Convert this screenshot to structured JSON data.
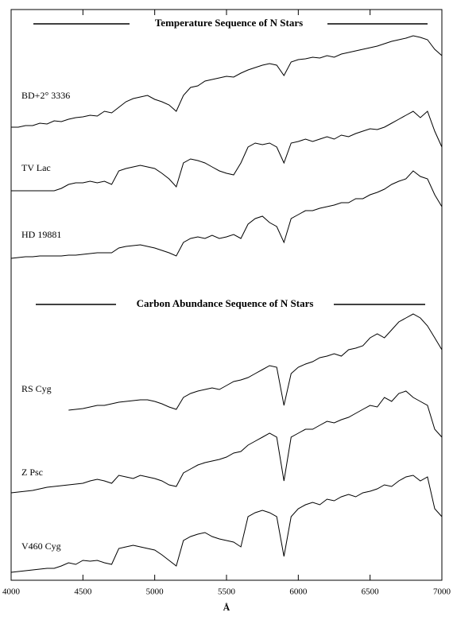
{
  "chart_data": {
    "type": "line",
    "annotations": [
      "Temperature Sequence of N Stars",
      "Carbon Abundance Sequence of N Stars"
    ],
    "xlabel": "Å",
    "xlim": [
      4000,
      7000
    ],
    "xticks": [
      4000,
      4500,
      5000,
      5500,
      6000,
      6500,
      7000
    ],
    "ylim": [
      0,
      720
    ],
    "x": [
      4000,
      4050,
      4100,
      4150,
      4200,
      4250,
      4300,
      4350,
      4400,
      4450,
      4500,
      4550,
      4600,
      4650,
      4700,
      4750,
      4800,
      4850,
      4900,
      4950,
      5000,
      5050,
      5100,
      5150,
      5200,
      5250,
      5300,
      5350,
      5400,
      5450,
      5500,
      5550,
      5600,
      5650,
      5700,
      5750,
      5800,
      5850,
      5900,
      5950,
      6000,
      6050,
      6100,
      6150,
      6200,
      6250,
      6300,
      6350,
      6400,
      6450,
      6500,
      6550,
      6600,
      6650,
      6700,
      6750,
      6800,
      6850,
      6900,
      6950,
      7000
    ],
    "series": [
      {
        "name": "BD+2° 3336",
        "color": "#000000",
        "values": [
          570,
          570,
          572,
          572,
          575,
          574,
          578,
          577,
          580,
          582,
          583,
          585,
          584,
          590,
          588,
          595,
          602,
          606,
          608,
          610,
          605,
          602,
          598,
          590,
          610,
          620,
          622,
          628,
          630,
          632,
          634,
          633,
          638,
          642,
          645,
          648,
          650,
          648,
          635,
          652,
          655,
          656,
          658,
          657,
          660,
          658,
          662,
          664,
          666,
          668,
          670,
          672,
          675,
          678,
          680,
          682,
          685,
          683,
          680,
          668,
          660
        ]
      },
      {
        "name": "TV Lac",
        "color": "#000000",
        "values": [
          490,
          490,
          490,
          490,
          490,
          490,
          490,
          493,
          498,
          500,
          500,
          502,
          500,
          502,
          498,
          515,
          518,
          520,
          522,
          520,
          518,
          512,
          505,
          495,
          525,
          530,
          528,
          525,
          520,
          515,
          512,
          510,
          525,
          545,
          550,
          548,
          550,
          545,
          525,
          550,
          552,
          555,
          552,
          555,
          558,
          555,
          560,
          558,
          562,
          565,
          568,
          567,
          570,
          575,
          580,
          585,
          590,
          582,
          590,
          565,
          545
        ]
      },
      {
        "name": "HD 19881",
        "color": "#000000",
        "values": [
          405,
          406,
          407,
          407,
          408,
          408,
          408,
          408,
          409,
          409,
          410,
          411,
          412,
          412,
          412,
          418,
          420,
          421,
          422,
          420,
          418,
          415,
          412,
          408,
          425,
          430,
          432,
          430,
          434,
          430,
          432,
          435,
          430,
          448,
          455,
          458,
          450,
          445,
          425,
          455,
          460,
          465,
          465,
          468,
          470,
          472,
          475,
          475,
          480,
          480,
          485,
          488,
          492,
          498,
          502,
          505,
          515,
          508,
          505,
          485,
          470
        ]
      },
      {
        "name": "RS Cyg",
        "color": "#000000",
        "values": [
          null,
          null,
          null,
          null,
          null,
          null,
          null,
          null,
          214,
          215,
          216,
          218,
          220,
          220,
          222,
          224,
          225,
          226,
          227,
          227,
          225,
          222,
          218,
          215,
          230,
          235,
          238,
          240,
          242,
          240,
          245,
          250,
          252,
          255,
          260,
          265,
          270,
          268,
          220,
          260,
          268,
          272,
          275,
          280,
          282,
          285,
          282,
          290,
          292,
          295,
          305,
          310,
          305,
          315,
          325,
          330,
          335,
          330,
          320,
          305,
          290
        ]
      },
      {
        "name": "Z Psc",
        "color": "#000000",
        "values": [
          110,
          111,
          112,
          113,
          115,
          117,
          118,
          119,
          120,
          121,
          122,
          125,
          127,
          125,
          122,
          132,
          130,
          128,
          132,
          130,
          128,
          125,
          120,
          118,
          135,
          140,
          145,
          148,
          150,
          152,
          155,
          160,
          162,
          170,
          175,
          180,
          185,
          180,
          125,
          180,
          185,
          190,
          190,
          195,
          200,
          198,
          202,
          205,
          210,
          215,
          220,
          218,
          230,
          225,
          235,
          238,
          230,
          225,
          220,
          190,
          180
        ]
      },
      {
        "name": "V460 Cyg",
        "color": "#000000",
        "values": [
          10,
          11,
          12,
          13,
          14,
          15,
          15,
          18,
          22,
          20,
          25,
          24,
          25,
          22,
          20,
          40,
          42,
          44,
          42,
          40,
          38,
          32,
          25,
          18,
          50,
          55,
          58,
          60,
          55,
          52,
          50,
          48,
          42,
          80,
          85,
          88,
          85,
          80,
          30,
          80,
          90,
          95,
          98,
          95,
          102,
          100,
          105,
          108,
          105,
          110,
          112,
          115,
          120,
          118,
          125,
          130,
          132,
          125,
          130,
          90,
          80
        ]
      }
    ]
  }
}
